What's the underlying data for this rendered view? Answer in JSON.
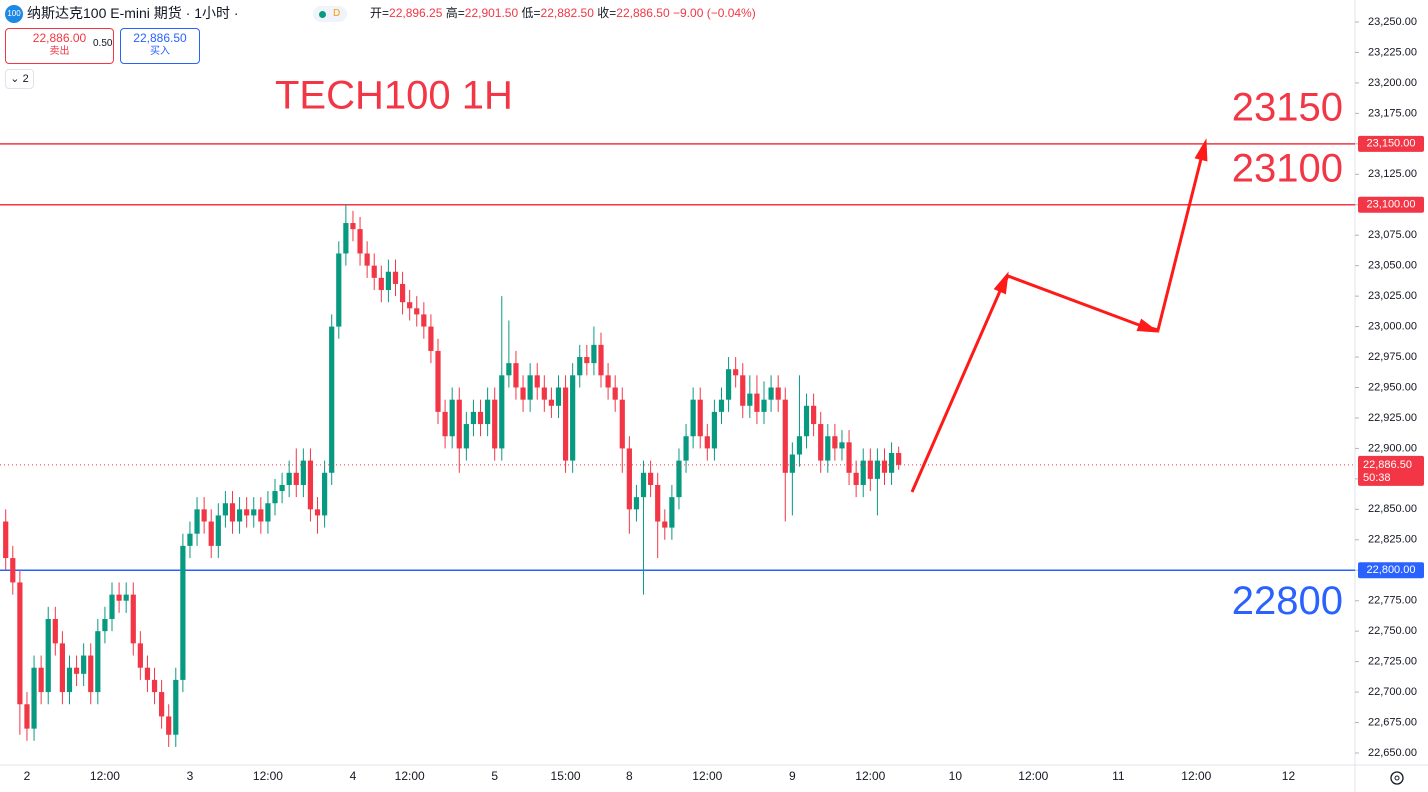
{
  "header": {
    "symbol_badge": "100",
    "title": "纳斯达克100 E-mini 期货 · 1小时 ·",
    "status": "D",
    "open_label": "开=",
    "open": "22,896.25",
    "high_label": "高=",
    "high": "22,901.50",
    "low_label": "低=",
    "low": "22,882.50",
    "close_label": "收=",
    "close": "22,886.50",
    "change": "−9.00 (−0.04%)"
  },
  "trade": {
    "sell_price": "22,886.00",
    "sell_label": "卖出",
    "spread": "0.50",
    "buy_price": "22,886.50",
    "buy_label": "买入",
    "indicators_count": "2"
  },
  "chart_data": {
    "type": "candlestick",
    "annotation": "TECH100 1H",
    "up_color": "#089981",
    "down_color": "#f23645",
    "categories": [
      null,
      null,
      null,
      "2",
      null,
      null,
      null,
      null,
      null,
      null,
      null,
      null,
      null,
      null,
      "12:00",
      null,
      null,
      null,
      null,
      null,
      null,
      null,
      null,
      null,
      null,
      null,
      "3",
      null,
      null,
      null,
      null,
      null,
      null,
      null,
      null,
      null,
      null,
      "12:00",
      null,
      null,
      null,
      null,
      null,
      null,
      null,
      null,
      null,
      null,
      null,
      "4",
      null,
      null,
      null,
      null,
      null,
      null,
      null,
      "12:00",
      null,
      null,
      null,
      null,
      null,
      null,
      null,
      null,
      null,
      null,
      null,
      "5",
      null,
      null,
      null,
      null,
      null,
      null,
      null,
      null,
      null,
      "15:00",
      null,
      null,
      null,
      null,
      null,
      null,
      null,
      null,
      "8",
      null,
      null,
      null,
      null,
      null,
      null,
      null,
      null,
      null,
      null,
      "12:00",
      null,
      null,
      null,
      null,
      null,
      null,
      null,
      null,
      null,
      null,
      null,
      "9",
      null,
      null,
      null,
      null,
      null,
      null,
      null,
      null,
      null,
      null,
      "12:00",
      null,
      null,
      null,
      null,
      null,
      null,
      null,
      null,
      null,
      null,
      null,
      "10",
      null,
      null,
      null,
      null,
      null,
      null,
      null,
      null,
      null,
      null,
      "12:00",
      null,
      null,
      null,
      null,
      null,
      null,
      null,
      null,
      null,
      null,
      null,
      "11",
      null,
      null,
      null,
      null,
      null,
      null,
      null,
      null,
      null,
      null,
      "12:00",
      null,
      null,
      null,
      null,
      null,
      null,
      null,
      null,
      null,
      null,
      null,
      null,
      "12",
      null,
      null,
      null,
      null,
      null,
      null,
      null,
      null
    ],
    "series": [
      {
        "open": [
          22840,
          22810,
          22790,
          22690,
          22670,
          22720,
          22700,
          22760,
          22740,
          22700,
          22720,
          22715,
          22730,
          22700,
          22750,
          22760,
          22780,
          22775,
          22780,
          22740,
          22720,
          22710,
          22700,
          22680,
          22665,
          22710,
          22820,
          22830,
          22850,
          22840,
          22820,
          22845,
          22855,
          22840,
          22850,
          22845,
          22850,
          22840,
          22855,
          22865,
          22870,
          22880,
          22870,
          22890,
          22850,
          22845,
          22880,
          23000,
          23060,
          23085,
          23080,
          23060,
          23050,
          23040,
          23030,
          23045,
          23035,
          23020,
          23015,
          23010,
          23000,
          22980,
          22930,
          22910,
          22940,
          22900,
          22920,
          22930,
          22920,
          22940,
          22900,
          22960,
          22970,
          22950,
          22940,
          22960,
          22950,
          22940,
          22935,
          22950,
          22890,
          22960,
          22975,
          22970,
          22985,
          22960,
          22950,
          22940,
          22900,
          22850,
          22860,
          22880,
          22870,
          22840,
          22835,
          22860,
          22890,
          22910,
          22940,
          22910,
          22900,
          22930,
          22940,
          22965,
          22960,
          22935,
          22945,
          22930,
          22940,
          22950,
          22940,
          22880,
          22895,
          22910,
          22935,
          22920,
          22890,
          22910,
          22900,
          22905,
          22880,
          22870,
          22890,
          22875,
          22890,
          22880,
          22896.25,
          null,
          null,
          null,
          null,
          null,
          null,
          null,
          null,
          null,
          null,
          null,
          null,
          null,
          null,
          null,
          null,
          null,
          null,
          null,
          null,
          null,
          null,
          null,
          null,
          null,
          null,
          null,
          null,
          null,
          null,
          null,
          null,
          null,
          null,
          null,
          null,
          null,
          null,
          null,
          null,
          null,
          null,
          null,
          null,
          null,
          null,
          null,
          null,
          null,
          null,
          null,
          null,
          null,
          null,
          null,
          null,
          null,
          null,
          null,
          null,
          null,
          null,
          null
        ],
        "high": [
          22850,
          22820,
          22800,
          22700,
          22730,
          22730,
          22770,
          22770,
          22750,
          22730,
          22730,
          22740,
          22740,
          22760,
          22770,
          22790,
          22790,
          22790,
          22790,
          22750,
          22730,
          22720,
          22710,
          22690,
          22720,
          22830,
          22840,
          22860,
          22860,
          22850,
          22855,
          22865,
          22865,
          22860,
          22860,
          22860,
          22860,
          22865,
          22875,
          22880,
          22890,
          22900,
          22900,
          22900,
          22860,
          22890,
          23010,
          23070,
          23100,
          23095,
          23090,
          23070,
          23060,
          23050,
          23055,
          23055,
          23045,
          23030,
          23025,
          23020,
          23010,
          22990,
          22940,
          22950,
          22950,
          22930,
          22940,
          22940,
          22950,
          22950,
          23025,
          23005,
          22980,
          22960,
          22970,
          22970,
          22960,
          22950,
          22960,
          22960,
          22970,
          22985,
          22985,
          23000,
          22995,
          22970,
          22960,
          22950,
          22910,
          22870,
          22890,
          22890,
          22880,
          22850,
          22870,
          22900,
          22920,
          22950,
          22950,
          22920,
          22940,
          22950,
          22975,
          22975,
          22970,
          22960,
          22960,
          22955,
          22960,
          22960,
          22950,
          22905,
          22960,
          22945,
          22945,
          22930,
          22920,
          22920,
          22915,
          22915,
          22890,
          22900,
          22900,
          22900,
          22900,
          22905,
          22901.5,
          null,
          null,
          null,
          null,
          null,
          null,
          null,
          null,
          null,
          null,
          null,
          null,
          null,
          null,
          null,
          null,
          null,
          null,
          null,
          null,
          null,
          null,
          null,
          null,
          null,
          null,
          null,
          null,
          null,
          null,
          null,
          null,
          null,
          null,
          null,
          null,
          null,
          null,
          null,
          null,
          null,
          null,
          null,
          null,
          null,
          null,
          null,
          null,
          null,
          null,
          null,
          null,
          null,
          null,
          null,
          null,
          null,
          null,
          null,
          null,
          null,
          null,
          null
        ],
        "low": [
          22800,
          22780,
          22665,
          22660,
          22660,
          22690,
          22690,
          22730,
          22690,
          22690,
          22705,
          22705,
          22690,
          22690,
          22740,
          22750,
          22765,
          22765,
          22730,
          22710,
          22700,
          22690,
          22670,
          22655,
          22655,
          22700,
          22810,
          22820,
          22830,
          22810,
          22810,
          22835,
          22830,
          22830,
          22835,
          22835,
          22830,
          22830,
          22845,
          22855,
          22860,
          22860,
          22860,
          22840,
          22830,
          22835,
          22870,
          22990,
          23050,
          23070,
          23050,
          23040,
          23030,
          23020,
          23020,
          23025,
          23010,
          23005,
          23000,
          22990,
          22970,
          22920,
          22900,
          22900,
          22880,
          22890,
          22910,
          22910,
          22910,
          22890,
          22890,
          22950,
          22940,
          22930,
          22930,
          22940,
          22930,
          22925,
          22925,
          22880,
          22880,
          22950,
          22960,
          22960,
          22950,
          22940,
          22930,
          22880,
          22830,
          22840,
          22780,
          22860,
          22810,
          22825,
          22825,
          22850,
          22880,
          22900,
          22900,
          22890,
          22890,
          22920,
          22930,
          22950,
          22925,
          22925,
          22920,
          22920,
          22930,
          22930,
          22840,
          22845,
          22885,
          22900,
          22910,
          22880,
          22880,
          22890,
          22890,
          22870,
          22860,
          22860,
          22865,
          22845,
          22870,
          22870,
          22882.5,
          null,
          null,
          null,
          null,
          null,
          null,
          null,
          null,
          null,
          null,
          null,
          null,
          null,
          null,
          null,
          null,
          null,
          null,
          null,
          null,
          null,
          null,
          null,
          null,
          null,
          null,
          null,
          null,
          null,
          null,
          null,
          null,
          null,
          null,
          null,
          null,
          null,
          null,
          null,
          null,
          null,
          null,
          null,
          null,
          null,
          null,
          null,
          null,
          null,
          null,
          null,
          null,
          null,
          null,
          null,
          null,
          null,
          null,
          null,
          null,
          null,
          null,
          null
        ],
        "close": [
          22810,
          22790,
          22690,
          22670,
          22720,
          22700,
          22760,
          22740,
          22700,
          22720,
          22715,
          22730,
          22700,
          22750,
          22760,
          22780,
          22775,
          22780,
          22740,
          22720,
          22710,
          22700,
          22680,
          22665,
          22710,
          22820,
          22830,
          22850,
          22840,
          22820,
          22845,
          22855,
          22840,
          22850,
          22845,
          22850,
          22840,
          22855,
          22865,
          22870,
          22880,
          22870,
          22890,
          22850,
          22845,
          22880,
          23000,
          23060,
          23085,
          23080,
          23060,
          23050,
          23040,
          23030,
          23045,
          23035,
          23020,
          23015,
          23010,
          23000,
          22980,
          22930,
          22910,
          22940,
          22900,
          22920,
          22930,
          22920,
          22940,
          22900,
          22960,
          22970,
          22950,
          22940,
          22960,
          22950,
          22940,
          22935,
          22950,
          22890,
          22960,
          22975,
          22970,
          22985,
          22960,
          22950,
          22940,
          22900,
          22850,
          22860,
          22880,
          22870,
          22840,
          22835,
          22860,
          22890,
          22910,
          22940,
          22910,
          22900,
          22930,
          22940,
          22965,
          22960,
          22935,
          22945,
          22930,
          22940,
          22950,
          22940,
          22880,
          22895,
          22910,
          22935,
          22920,
          22890,
          22910,
          22900,
          22905,
          22880,
          22870,
          22890,
          22875,
          22890,
          22880,
          22896.25,
          22886.5,
          null,
          null,
          null,
          null,
          null,
          null,
          null,
          null,
          null,
          null,
          null,
          null,
          null,
          null,
          null,
          null,
          null,
          null,
          null,
          null,
          null,
          null,
          null,
          null,
          null,
          null,
          null,
          null,
          null,
          null,
          null,
          null,
          null,
          null,
          null,
          null,
          null,
          null,
          null,
          null,
          null,
          null,
          null,
          null,
          null,
          null,
          null,
          null,
          null,
          null,
          null,
          null,
          null,
          null,
          null,
          null,
          null,
          null,
          null,
          null,
          null,
          null,
          null
        ]
      }
    ],
    "ylim": [
      22650,
      23250
    ],
    "yticks": [
      {
        "value": 22650,
        "label": "22,650.00"
      },
      {
        "value": 22675,
        "label": "22,675.00"
      },
      {
        "value": 22700,
        "label": "22,700.00"
      },
      {
        "value": 22725,
        "label": "22,725.00"
      },
      {
        "value": 22750,
        "label": "22,750.00"
      },
      {
        "value": 22775,
        "label": "22,775.00"
      },
      {
        "value": 22800,
        "label": "22,800.00"
      },
      {
        "value": 22825,
        "label": "22,825.00"
      },
      {
        "value": 22850,
        "label": "22,850.00"
      },
      {
        "value": 22875,
        "label": "22,875.00"
      },
      {
        "value": 22900,
        "label": "22,900.00"
      },
      {
        "value": 22925,
        "label": "22,925.00"
      },
      {
        "value": 22950,
        "label": "22,950.00"
      },
      {
        "value": 22975,
        "label": "22,975.00"
      },
      {
        "value": 23000,
        "label": "23,000.00"
      },
      {
        "value": 23025,
        "label": "23,025.00"
      },
      {
        "value": 23050,
        "label": "23,050.00"
      },
      {
        "value": 23075,
        "label": "23,075.00"
      },
      {
        "value": 23100,
        "label": "23,100.00"
      },
      {
        "value": 23125,
        "label": "23,125.00"
      },
      {
        "value": 23150,
        "label": "23,150.00"
      },
      {
        "value": 23175,
        "label": "23,175.00"
      },
      {
        "value": 23200,
        "label": "23,200.00"
      },
      {
        "value": 23225,
        "label": "23,225.00"
      },
      {
        "value": 23250,
        "label": "23,250.00"
      }
    ],
    "levels": [
      {
        "value": 23150,
        "label": "23,150.00",
        "annotation": "23150",
        "color": "#f23645"
      },
      {
        "value": 23100,
        "label": "23,100.00",
        "annotation": "23100",
        "color": "#f23645"
      },
      {
        "value": 22800,
        "label": "22,800.00",
        "annotation": "22800",
        "color": "#2962ff"
      }
    ],
    "last_price": {
      "value": 22886.5,
      "label": "22,886.50",
      "countdown": "50:38",
      "color": "#f23645"
    }
  }
}
